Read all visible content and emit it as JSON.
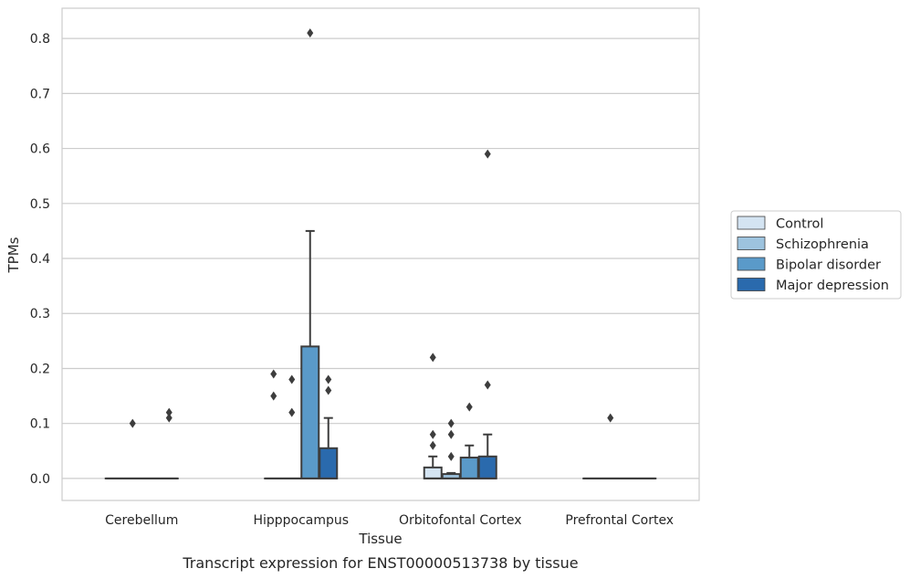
{
  "chart_data": {
    "type": "box",
    "title": "",
    "caption": "Transcript expression for ENST00000513738 by tissue",
    "xlabel": "Tissue",
    "ylabel": "TPMs",
    "ylim": [
      -0.04,
      0.855
    ],
    "yticks": [
      "0.0",
      "0.1",
      "0.2",
      "0.3",
      "0.4",
      "0.5",
      "0.6",
      "0.7",
      "0.8"
    ],
    "grid": "horizontal",
    "legend_position": "right",
    "categories": [
      "Cerebellum",
      "Hipppocampus",
      "Orbitofontal Cortex",
      "Prefrontal Cortex"
    ],
    "series": [
      {
        "name": "Control",
        "color": "#d4e4f2",
        "boxes": [
          {
            "q1": 0.0,
            "median": 0.0,
            "q3": 0.0,
            "whisker_low": 0.0,
            "whisker_high": 0.0,
            "outliers": []
          },
          {
            "q1": 0.0,
            "median": 0.0,
            "q3": 0.0,
            "whisker_low": 0.0,
            "whisker_high": 0.0,
            "outliers": [
              0.15,
              0.19
            ]
          },
          {
            "q1": 0.0,
            "median": 0.0,
            "q3": 0.02,
            "whisker_low": 0.0,
            "whisker_high": 0.04,
            "outliers": [
              0.06,
              0.08,
              0.22
            ]
          },
          {
            "q1": 0.0,
            "median": 0.0,
            "q3": 0.0,
            "whisker_low": 0.0,
            "whisker_high": 0.0,
            "outliers": []
          }
        ]
      },
      {
        "name": "Schizophrenia",
        "color": "#9dc3de",
        "boxes": [
          {
            "q1": 0.0,
            "median": 0.0,
            "q3": 0.0,
            "whisker_low": 0.0,
            "whisker_high": 0.0,
            "outliers": [
              0.1
            ]
          },
          {
            "q1": 0.0,
            "median": 0.0,
            "q3": 0.0,
            "whisker_low": 0.0,
            "whisker_high": 0.0,
            "outliers": [
              0.12,
              0.18
            ]
          },
          {
            "q1": 0.0,
            "median": 0.0,
            "q3": 0.008,
            "whisker_low": 0.0,
            "whisker_high": 0.01,
            "outliers": [
              0.04,
              0.08,
              0.1
            ]
          },
          {
            "q1": 0.0,
            "median": 0.0,
            "q3": 0.0,
            "whisker_low": 0.0,
            "whisker_high": 0.0,
            "outliers": [
              0.11
            ]
          }
        ]
      },
      {
        "name": "Bipolar disorder",
        "color": "#5a9ac9",
        "boxes": [
          {
            "q1": 0.0,
            "median": 0.0,
            "q3": 0.0,
            "whisker_low": 0.0,
            "whisker_high": 0.0,
            "outliers": []
          },
          {
            "q1": 0.0,
            "median": 0.0,
            "q3": 0.24,
            "whisker_low": 0.0,
            "whisker_high": 0.45,
            "outliers": [
              0.81
            ]
          },
          {
            "q1": 0.0,
            "median": 0.0,
            "q3": 0.038,
            "whisker_low": 0.0,
            "whisker_high": 0.06,
            "outliers": [
              0.13
            ]
          },
          {
            "q1": 0.0,
            "median": 0.0,
            "q3": 0.0,
            "whisker_low": 0.0,
            "whisker_high": 0.0,
            "outliers": []
          }
        ]
      },
      {
        "name": "Major depression",
        "color": "#2a6aad",
        "boxes": [
          {
            "q1": 0.0,
            "median": 0.0,
            "q3": 0.0,
            "whisker_low": 0.0,
            "whisker_high": 0.0,
            "outliers": [
              0.11,
              0.12
            ]
          },
          {
            "q1": 0.0,
            "median": 0.0,
            "q3": 0.055,
            "whisker_low": 0.0,
            "whisker_high": 0.11,
            "outliers": [
              0.16,
              0.18
            ]
          },
          {
            "q1": 0.0,
            "median": 0.0,
            "q3": 0.04,
            "whisker_low": 0.0,
            "whisker_high": 0.08,
            "outliers": [
              0.17,
              0.59
            ]
          },
          {
            "q1": 0.0,
            "median": 0.0,
            "q3": 0.0,
            "whisker_low": 0.0,
            "whisker_high": 0.0,
            "outliers": []
          }
        ]
      }
    ]
  }
}
